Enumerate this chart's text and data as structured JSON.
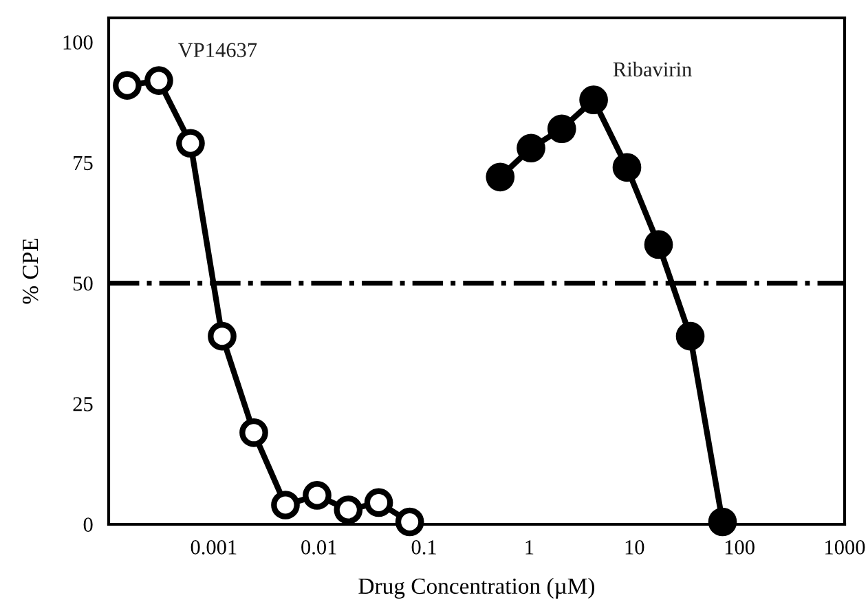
{
  "chart_data": {
    "type": "line",
    "xlabel": "Drug Concentration (µM)",
    "ylabel": "% CPE",
    "log": "x",
    "xlim": [
      0.0001,
      1000
    ],
    "xticks": [
      0.001,
      0.01,
      0.1,
      1,
      10,
      100,
      1000
    ],
    "ylim": [
      0,
      105
    ],
    "yticks": [
      0,
      25,
      50,
      75,
      100
    ],
    "grid": false,
    "legend": false,
    "marker": "circle",
    "line_style": "solid",
    "series": [
      {
        "name": "VP14637",
        "color": "#ffffff",
        "x": [
          0.00015,
          0.0003,
          0.0006,
          0.0012,
          0.0024,
          0.0048,
          0.0096,
          0.019,
          0.037,
          0.073
        ],
        "values": [
          91,
          92,
          79,
          39,
          19,
          4,
          6,
          3,
          4.5,
          0.5
        ]
      },
      {
        "name": "Ribavirin",
        "color": "#000000",
        "x": [
          0.53,
          1.04,
          2.04,
          4.1,
          8.5,
          17,
          34,
          69
        ],
        "values": [
          72,
          78,
          82,
          88,
          74,
          58,
          39,
          0.5
        ]
      }
    ],
    "ref_lines": [
      {
        "axis": "y",
        "value": 50,
        "color": "#000000",
        "line_style": "dashdot"
      }
    ]
  }
}
